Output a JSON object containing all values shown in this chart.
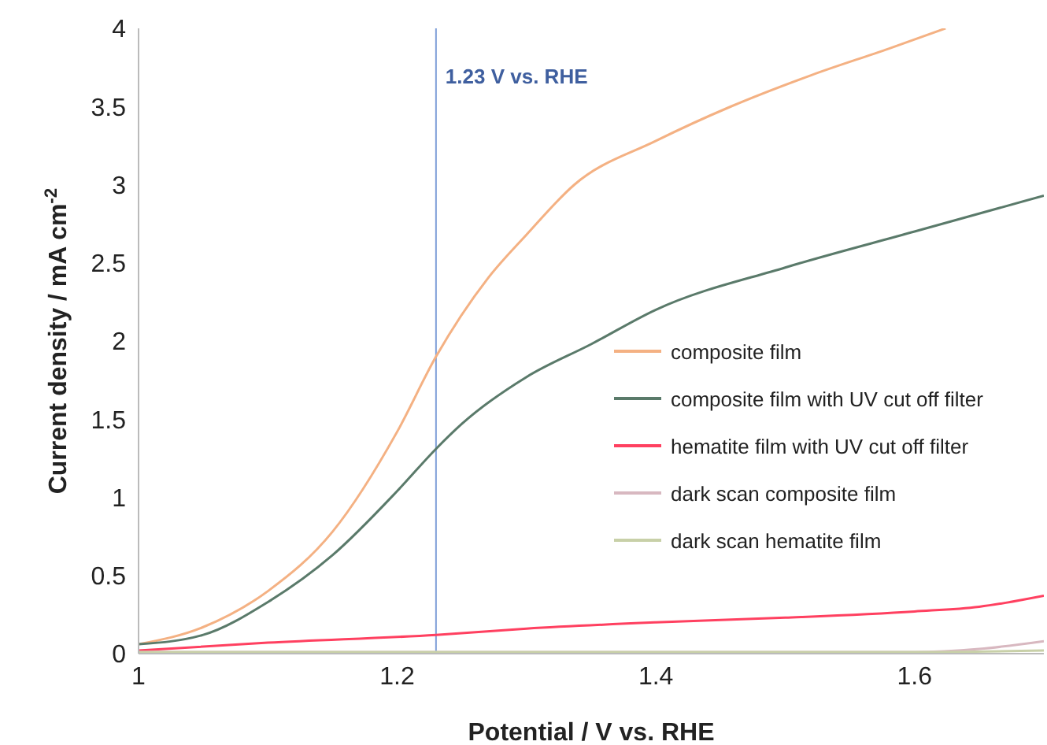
{
  "chart_data": {
    "type": "line",
    "xlabel": "Potential / V vs. RHE",
    "ylabel": "Current density / mA cm$^{-2}$",
    "xlim": [
      1,
      1.7
    ],
    "xticks": [
      1,
      1.2,
      1.4,
      1.6
    ],
    "ylim": [
      0,
      4
    ],
    "yticks": [
      0,
      0.5,
      1,
      1.5,
      2,
      2.5,
      3,
      3.5,
      4
    ],
    "grid": false,
    "legend": "right",
    "marker": "none",
    "line_style": "solid",
    "ref_lines": [
      {
        "axis": "x",
        "value": 1.23,
        "label": "1.23 V vs. RHE",
        "color": "#7f9fd8"
      }
    ],
    "series": [
      {
        "name": "composite film",
        "color": "#f4b183",
        "x": [
          1,
          1.05,
          1.1,
          1.15,
          1.2,
          1.23,
          1.27,
          1.3,
          1.337,
          1.4,
          1.458,
          1.52,
          1.58,
          1.624
        ],
        "values": [
          0.06,
          0.17,
          0.4,
          0.78,
          1.42,
          1.9,
          2.4,
          2.68,
          3,
          3.28,
          3.5,
          3.7,
          3.87,
          4
        ]
      },
      {
        "name": "composite film with UV cut off filter",
        "color": "#5a7a6a",
        "x": [
          1,
          1.05,
          1.1,
          1.15,
          1.2,
          1.23,
          1.25,
          1.3,
          1.35,
          1.4,
          1.5,
          1.6,
          1.7
        ],
        "values": [
          0.06,
          0.12,
          0.33,
          0.63,
          1.04,
          1.31,
          1.47,
          1.77,
          1.98,
          2.2,
          2.47,
          2.7,
          2.93
        ]
      },
      {
        "name": "hematite film with UV cut off filter",
        "color": "#ff4060",
        "x": [
          1,
          1.1,
          1.23,
          1.3,
          1.4,
          1.5,
          1.6,
          1.65,
          1.7
        ],
        "values": [
          0.02,
          0.07,
          0.12,
          0.16,
          0.2,
          0.23,
          0.27,
          0.3,
          0.37
        ]
      },
      {
        "name": "dark scan composite film",
        "color": "#d8b8c0",
        "x": [
          1,
          1.2,
          1.4,
          1.6,
          1.65,
          1.7
        ],
        "values": [
          0.01,
          0.01,
          0.01,
          0.01,
          0.03,
          0.08
        ]
      },
      {
        "name": "dark scan hematite film",
        "color": "#c8d0a8",
        "x": [
          1,
          1.2,
          1.4,
          1.6,
          1.7
        ],
        "values": [
          0.01,
          0.01,
          0.01,
          0.01,
          0.02
        ]
      }
    ]
  }
}
